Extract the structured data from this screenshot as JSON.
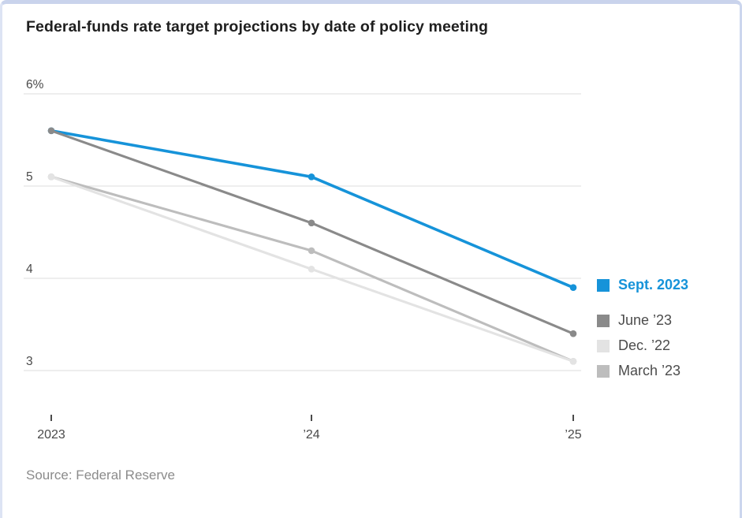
{
  "page": {
    "title": "Federal-funds rate target projections by date of policy meeting",
    "source_note": "Source: Federal Reserve"
  },
  "colors": {
    "accent_blue": "#1693d9",
    "gridline": "#e4e4e4",
    "axis_text": "#4a4a4a",
    "tick_mark": "#4a4a4a",
    "legend_text": "#4c4c4c",
    "frame_border_top": "#c9d3ec"
  },
  "chart_data": {
    "type": "line",
    "title": "Federal-funds rate target projections by date of policy meeting",
    "x": [
      2023,
      2024,
      2025
    ],
    "x_tick_labels": [
      "2023",
      "’24",
      "’25"
    ],
    "y_ticks": [
      6,
      5,
      4,
      3
    ],
    "y_tick_labels": [
      "6%",
      "5",
      "4",
      "3"
    ],
    "ylim": [
      2.75,
      6.3
    ],
    "unit": "%",
    "grid": "horizontal",
    "legend_position": "right",
    "series": [
      {
        "name": "Sept. 2023",
        "color": "#1693d9",
        "emphasis": true,
        "values": [
          5.6,
          5.1,
          3.9
        ]
      },
      {
        "name": "June ’23",
        "color": "#8a8a8a",
        "emphasis": false,
        "values": [
          5.6,
          4.6,
          3.4
        ]
      },
      {
        "name": "Dec. ’22",
        "color": "#e3e3e3",
        "emphasis": false,
        "values": [
          5.1,
          4.1,
          3.1
        ]
      },
      {
        "name": "March ’23",
        "color": "#bdbdbd",
        "emphasis": false,
        "values": [
          5.1,
          4.3,
          3.1
        ]
      }
    ],
    "source": "Source: Federal Reserve"
  }
}
